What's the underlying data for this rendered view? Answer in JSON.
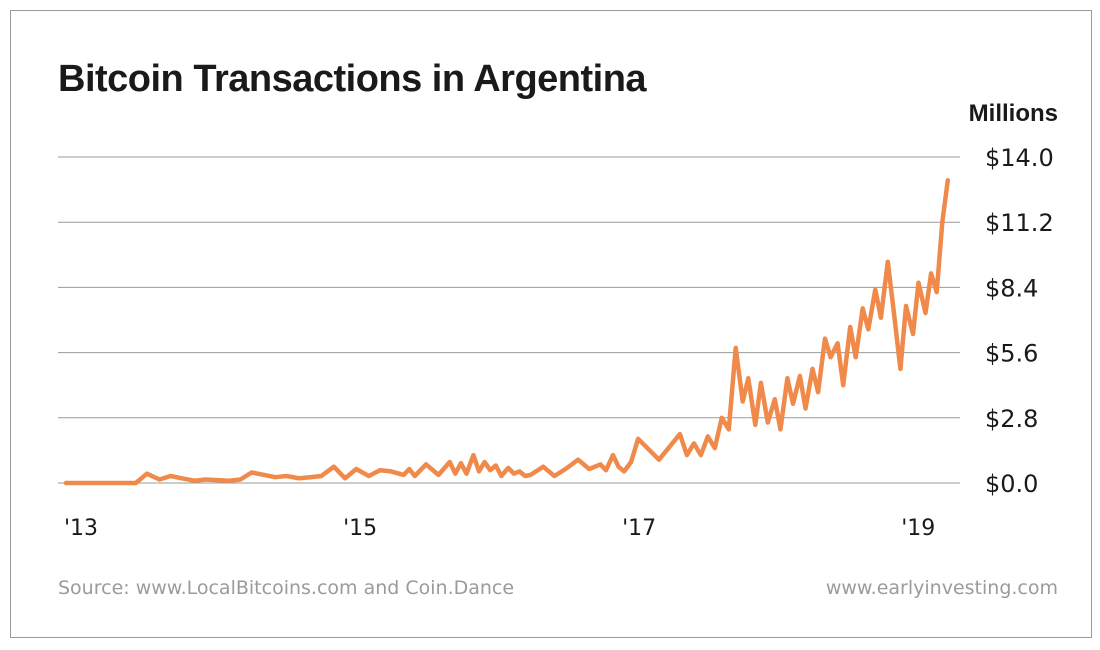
{
  "title": "Bitcoin Transactions in Argentina",
  "source": "Source: www.LocalBitcoins.com and Coin.Dance",
  "website": "www.earlyinvesting.com",
  "colors": {
    "line": "#f08a4b",
    "grid": "#999999",
    "text": "#1a1a1a",
    "footer": "#9b9b9b"
  },
  "chart_data": {
    "type": "line",
    "title": "Bitcoin Transactions in Argentina",
    "ylabel": "Millions",
    "ylim": [
      0,
      14
    ],
    "yticks": [
      0,
      2.8,
      5.6,
      8.4,
      11.2,
      14
    ],
    "ytick_labels": [
      "$0.0",
      "$2.8",
      "$5.6",
      "$8.4",
      "$11.2",
      "$14.0"
    ],
    "xlim": [
      2013,
      2019.4
    ],
    "xticks": [
      2013,
      2015,
      2017,
      2019
    ],
    "xtick_labels": [
      "'13",
      "'15",
      "'17",
      "'19"
    ],
    "grid": true,
    "series": [
      {
        "x": [
          2013.0,
          2013.5,
          2013.58,
          2013.67,
          2013.75,
          2013.83,
          2013.92,
          2014.0,
          2014.17,
          2014.25,
          2014.33,
          2014.42,
          2014.5,
          2014.58,
          2014.67,
          2014.75,
          2014.83,
          2014.92,
          2015.0,
          2015.08,
          2015.17,
          2015.25,
          2015.33,
          2015.42,
          2015.46,
          2015.5,
          2015.58,
          2015.67,
          2015.75,
          2015.79,
          2015.83,
          2015.87,
          2015.92,
          2015.96,
          2016.0,
          2016.04,
          2016.08,
          2016.12,
          2016.17,
          2016.21,
          2016.25,
          2016.29,
          2016.33,
          2016.42,
          2016.5,
          2016.58,
          2016.67,
          2016.75,
          2016.83,
          2016.87,
          2016.92,
          2016.96,
          2017.0,
          2017.05,
          2017.1,
          2017.25,
          2017.4,
          2017.45,
          2017.5,
          2017.55,
          2017.6,
          2017.65,
          2017.7,
          2017.75,
          2017.8,
          2017.85,
          2017.89,
          2017.94,
          2017.98,
          2018.03,
          2018.08,
          2018.12,
          2018.17,
          2018.21,
          2018.26,
          2018.3,
          2018.35,
          2018.39,
          2018.44,
          2018.48,
          2018.53,
          2018.57,
          2018.62,
          2018.66,
          2018.71,
          2018.75,
          2018.8,
          2018.84,
          2018.89,
          2018.93,
          2018.98,
          2019.02,
          2019.07,
          2019.11,
          2019.16,
          2019.2,
          2019.24,
          2019.28,
          2019.32
        ],
        "values": [
          0.0,
          0.0,
          0.4,
          0.15,
          0.3,
          0.2,
          0.1,
          0.15,
          0.1,
          0.15,
          0.45,
          0.35,
          0.25,
          0.3,
          0.2,
          0.25,
          0.3,
          0.7,
          0.2,
          0.6,
          0.3,
          0.55,
          0.5,
          0.35,
          0.6,
          0.3,
          0.8,
          0.35,
          0.9,
          0.4,
          0.85,
          0.4,
          1.2,
          0.5,
          0.9,
          0.55,
          0.75,
          0.3,
          0.65,
          0.4,
          0.5,
          0.3,
          0.35,
          0.7,
          0.3,
          0.6,
          1.0,
          0.6,
          0.8,
          0.55,
          1.2,
          0.7,
          0.5,
          0.9,
          1.9,
          1.0,
          2.1,
          1.2,
          1.7,
          1.2,
          2.0,
          1.5,
          2.8,
          2.3,
          5.8,
          3.5,
          4.5,
          2.5,
          4.3,
          2.6,
          3.6,
          2.3,
          4.5,
          3.4,
          4.6,
          3.2,
          4.9,
          3.9,
          6.2,
          5.4,
          6.0,
          4.2,
          6.7,
          5.4,
          7.5,
          6.6,
          8.3,
          7.1,
          9.5,
          7.5,
          4.9,
          7.6,
          6.4,
          8.6,
          7.3,
          9.0,
          8.2,
          11.2,
          13.0
        ]
      }
    ]
  }
}
